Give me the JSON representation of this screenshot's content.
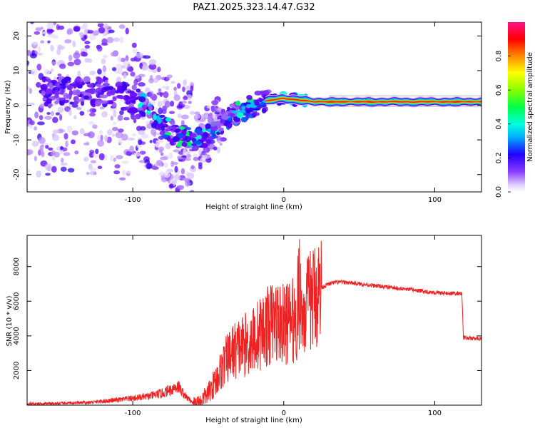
{
  "title": "PAZ1.2025.323.14.47.G32",
  "colors": {
    "line": "#ee2222",
    "frame": "#000000"
  },
  "chart_data": [
    {
      "type": "heatmap",
      "xlabel": "Height of straight line (km)",
      "ylabel": "Frequency (Hz)",
      "xlim": [
        -170,
        131
      ],
      "ylim": [
        -25,
        24
      ],
      "xticks": [
        -100,
        0,
        100
      ],
      "xtick_labels": [
        "-100",
        "0",
        "100"
      ],
      "yticks": [
        -20,
        -10,
        0,
        10,
        20
      ],
      "ytick_labels": [
        "-20",
        "-10",
        "0",
        "10",
        "20"
      ],
      "colorbar": {
        "label": "Normalized spectral amplitude",
        "range": [
          0,
          1
        ],
        "ticks": [
          0.0,
          0.2,
          0.4,
          0.6,
          0.8
        ],
        "tick_labels": [
          "0.0",
          "0.2",
          "0.4",
          "0.6",
          "0.8"
        ]
      },
      "ridge": [
        {
          "x": -150,
          "f": 4
        },
        {
          "x": -120,
          "f": 4
        },
        {
          "x": -100,
          "f": 2
        },
        {
          "x": -85,
          "f": -4
        },
        {
          "x": -70,
          "f": -9
        },
        {
          "x": -55,
          "f": -10
        },
        {
          "x": -45,
          "f": -6
        },
        {
          "x": -35,
          "f": -3
        },
        {
          "x": -25,
          "f": -1
        },
        {
          "x": -15,
          "f": 1
        },
        {
          "x": 0,
          "f": 2
        },
        {
          "x": 20,
          "f": 1
        },
        {
          "x": 60,
          "f": 1
        },
        {
          "x": 131,
          "f": 1
        }
      ]
    },
    {
      "type": "line",
      "xlabel": "Height of straight line (km)",
      "ylabel": "SNR (10 * v/v)",
      "xlim": [
        -170,
        131
      ],
      "ylim": [
        0,
        9800
      ],
      "xticks": [
        -100,
        0,
        100
      ],
      "xtick_labels": [
        "-100",
        "0",
        "100"
      ],
      "yticks": [
        2000,
        4000,
        6000,
        8000
      ],
      "ytick_labels": [
        "2000",
        "4000",
        "6000",
        "8000"
      ],
      "series": [
        {
          "name": "SNR",
          "x": [
            -170,
            -150,
            -130,
            -110,
            -90,
            -80,
            -75,
            -70,
            -65,
            -60,
            -55,
            -50,
            -45,
            -40,
            -35,
            -30,
            -25,
            -20,
            -15,
            -10,
            -5,
            0,
            5,
            10,
            15,
            20,
            25,
            30,
            35,
            40,
            50,
            60,
            70,
            80,
            90,
            100,
            110,
            118,
            119,
            125,
            131
          ],
          "values": [
            80,
            100,
            150,
            300,
            500,
            700,
            900,
            1100,
            500,
            150,
            250,
            700,
            1400,
            2300,
            3000,
            3300,
            3500,
            3800,
            4200,
            4600,
            4900,
            4600,
            4900,
            4800,
            5700,
            6300,
            6800,
            7000,
            7100,
            7100,
            7000,
            6900,
            6800,
            6700,
            6600,
            6500,
            6450,
            6450,
            3900,
            3850,
            3850
          ]
        }
      ]
    }
  ]
}
